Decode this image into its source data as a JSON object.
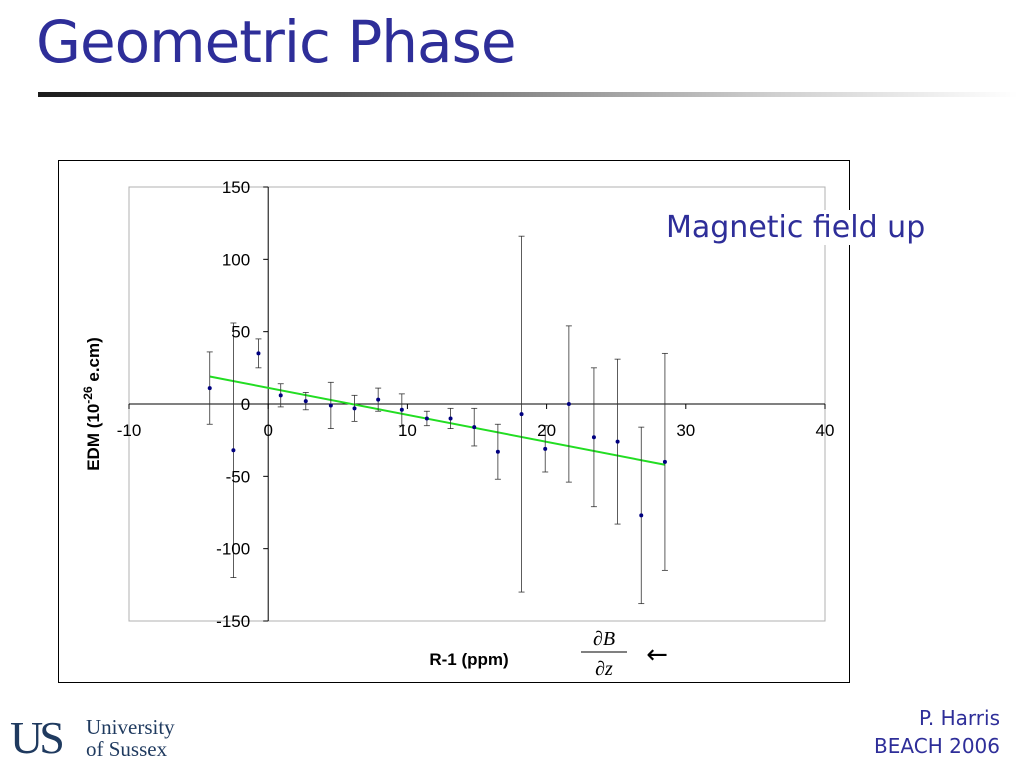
{
  "slide": {
    "title": "Geometric Phase",
    "annotation": "Magnetic field up",
    "credit_name": "P. Harris",
    "credit_event": "BEACH 2006",
    "logo": {
      "mark": "US",
      "line1": "University",
      "line2": "of Sussex"
    }
  },
  "colors": {
    "title": "#2e2e99",
    "points": "#000080",
    "fit_line": "#22dd22"
  },
  "chart_data": {
    "type": "scatter",
    "xlabel": "R-1 (ppm)",
    "ylabel_prefix": "EDM (10",
    "ylabel_exp": "-26",
    "ylabel_suffix": " e.cm)",
    "xlim": [
      -10,
      40
    ],
    "ylim": [
      -150,
      150
    ],
    "xticks": [
      -10,
      0,
      10,
      20,
      30,
      40
    ],
    "yticks": [
      -150,
      -100,
      -50,
      0,
      50,
      100,
      150
    ],
    "grid": false,
    "gradient_label_num": "∂B",
    "gradient_label_den": "∂z",
    "gradient_arrow": "←",
    "series": [
      {
        "x": [
          -4.2,
          -2.5,
          -0.7,
          0.9,
          2.7,
          4.5,
          6.2,
          7.9,
          9.6,
          11.4,
          13.1,
          14.8,
          16.5,
          18.2,
          19.9,
          21.6,
          23.4,
          25.1,
          26.8,
          28.5
        ],
        "y": [
          11,
          -32,
          35,
          6,
          2,
          -1,
          -3,
          3,
          -4,
          -10,
          -10,
          -16,
          -33,
          -7,
          -31,
          0,
          -23,
          -26,
          -77,
          -40
        ],
        "err": [
          25,
          88,
          10,
          8,
          6,
          16,
          9,
          8,
          11,
          5,
          7,
          13,
          19,
          123,
          16,
          54,
          48,
          57,
          61,
          75
        ]
      }
    ],
    "fit": {
      "x": [
        -4.2,
        28.5
      ],
      "y": [
        19,
        -42
      ]
    }
  }
}
